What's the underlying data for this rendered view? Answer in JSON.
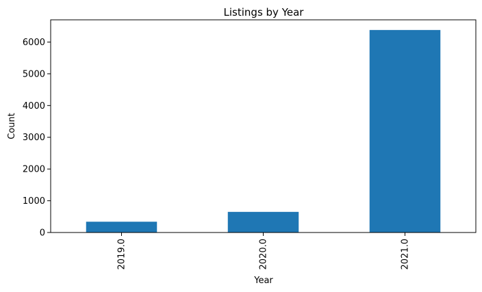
{
  "chart_data": {
    "type": "bar",
    "title": "Listings by Year",
    "xlabel": "Year",
    "ylabel": "Count",
    "categories": [
      "2019.0",
      "2020.0",
      "2021.0"
    ],
    "values": [
      340,
      650,
      6380
    ],
    "ylim": [
      0,
      6700
    ],
    "yticks": [
      0,
      1000,
      2000,
      3000,
      4000,
      5000,
      6000
    ],
    "grid": false,
    "bar_color": "#1f77b4"
  }
}
